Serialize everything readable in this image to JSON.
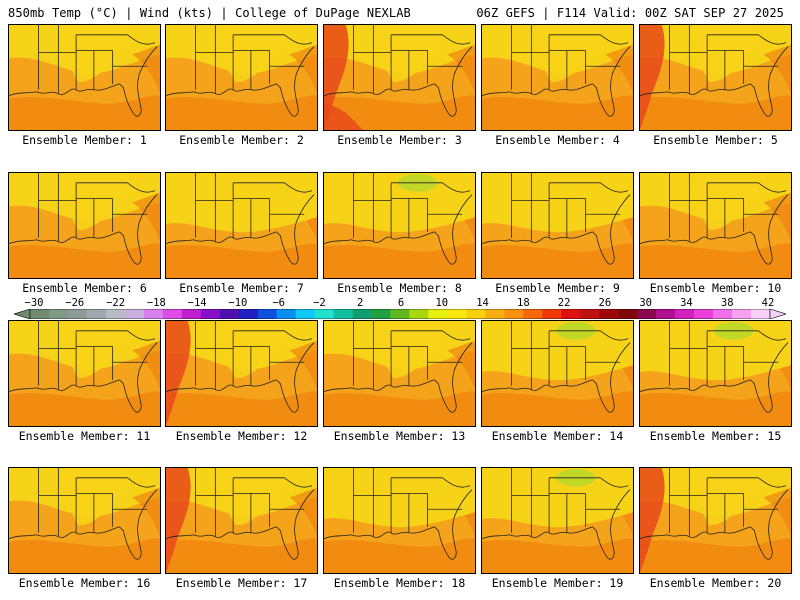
{
  "header": {
    "left_title": "850mb Temp (°C) | Wind (kts) | College of DuPage NEXLAB",
    "right_title": "06Z GEFS | F114 Valid: 00Z SAT SEP 27 2025"
  },
  "map_layer": "850mb Temp (°C) | Wind (kts)",
  "panels": [
    {
      "label": "Ensemble Member: 1",
      "scheme": "warm"
    },
    {
      "label": "Ensemble Member: 2",
      "scheme": "warm"
    },
    {
      "label": "Ensemble Member: 3",
      "scheme": "hot"
    },
    {
      "label": "Ensemble Member: 4",
      "scheme": "warm"
    },
    {
      "label": "Ensemble Member: 5",
      "scheme": "hotwest"
    },
    {
      "label": "Ensemble Member: 6",
      "scheme": "warm"
    },
    {
      "label": "Ensemble Member: 7",
      "scheme": "cool"
    },
    {
      "label": "Ensemble Member: 8",
      "scheme": "coolgreen"
    },
    {
      "label": "Ensemble Member: 9",
      "scheme": "cool"
    },
    {
      "label": "Ensemble Member: 10",
      "scheme": "warm"
    },
    {
      "label": "Ensemble Member: 11",
      "scheme": "warm"
    },
    {
      "label": "Ensemble Member: 12",
      "scheme": "hotwest"
    },
    {
      "label": "Ensemble Member: 13",
      "scheme": "warm"
    },
    {
      "label": "Ensemble Member: 14",
      "scheme": "coolgreen"
    },
    {
      "label": "Ensemble Member: 15",
      "scheme": "coolgreen"
    },
    {
      "label": "Ensemble Member: 16",
      "scheme": "warm"
    },
    {
      "label": "Ensemble Member: 17",
      "scheme": "hotwest"
    },
    {
      "label": "Ensemble Member: 18",
      "scheme": "cool"
    },
    {
      "label": "Ensemble Member: 19",
      "scheme": "coolgreen"
    },
    {
      "label": "Ensemble Member: 20",
      "scheme": "hotwest"
    }
  ],
  "colorbar": {
    "labels": [
      "−30",
      "−26",
      "−22",
      "−18",
      "−14",
      "−10",
      "−6",
      "−2",
      "2",
      "6",
      "10",
      "14",
      "18",
      "22",
      "26",
      "30",
      "34",
      "38",
      "42"
    ],
    "colors": [
      "#6f8a6f",
      "#7e9a86",
      "#8e9c98",
      "#a0a8b0",
      "#b8bcc8",
      "#c8b0e0",
      "#d880f0",
      "#e04ce8",
      "#c020d0",
      "#8810c8",
      "#5010b0",
      "#2020c0",
      "#1050e0",
      "#0890f0",
      "#10c8f8",
      "#20e0d0",
      "#10c0a0",
      "#10a070",
      "#20a040",
      "#60b820",
      "#a8d810",
      "#e8f010",
      "#f8e810",
      "#f8d010",
      "#f8b010",
      "#f89010",
      "#f86808",
      "#f03808",
      "#e01010",
      "#c01010",
      "#a00808",
      "#800808",
      "#880850",
      "#b01090",
      "#d020c0",
      "#e840d8",
      "#f070e8",
      "#f8a0f0",
      "#f8d0f8"
    ]
  },
  "colors": {
    "background": "#ffffff",
    "map_base": "#f4a31a",
    "map_yellow": "#f7d318",
    "map_orange": "#f0840f",
    "map_red": "#e8481a",
    "map_green": "#b7d82a",
    "boundary_line": "#222222"
  }
}
